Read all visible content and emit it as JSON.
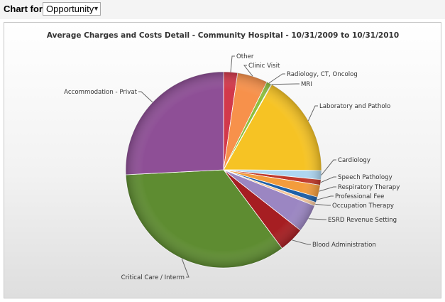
{
  "toolbar": {
    "label": "Chart for",
    "select_value": "Opportunity"
  },
  "chart_data": {
    "type": "pie",
    "title": "Average Charges and Costs Detail - Community Hospital - 10/31/2009 to 10/31/2010",
    "slices": [
      {
        "label": "Other",
        "value": 2.3,
        "color": "#d2394b"
      },
      {
        "label": "Clinic Visit",
        "value": 5.0,
        "color": "#f7914b"
      },
      {
        "label": "Radiology, CT, Oncolog",
        "value": 0.8,
        "color": "#8dbf3f"
      },
      {
        "label": "MRI",
        "value": 0.1,
        "color": "#9bd0ea"
      },
      {
        "label": "Laboratory and Patholo",
        "value": 16.9,
        "color": "#f6c324"
      },
      {
        "label": "Cardiology",
        "value": 1.5,
        "color": "#aed6f1"
      },
      {
        "label": "Speech Pathology",
        "value": 0.9,
        "color": "#c0392b"
      },
      {
        "label": "Respiratory Therapy",
        "value": 2.0,
        "color": "#f39c3c"
      },
      {
        "label": "Professional Fee",
        "value": 0.9,
        "color": "#1d5fa7"
      },
      {
        "label": "Occupation Therapy",
        "value": 0.6,
        "color": "#f3c49a"
      },
      {
        "label": "ESRD Revenue Setting",
        "value": 4.6,
        "color": "#9b86c2"
      },
      {
        "label": "Blood Administration",
        "value": 4.2,
        "color": "#a61e22"
      },
      {
        "label": "Critical Care / Interm",
        "value": 34.4,
        "color": "#5e8c31"
      },
      {
        "label": "Accommodation - Privat",
        "value": 25.8,
        "color": "#8e4f96"
      }
    ]
  }
}
